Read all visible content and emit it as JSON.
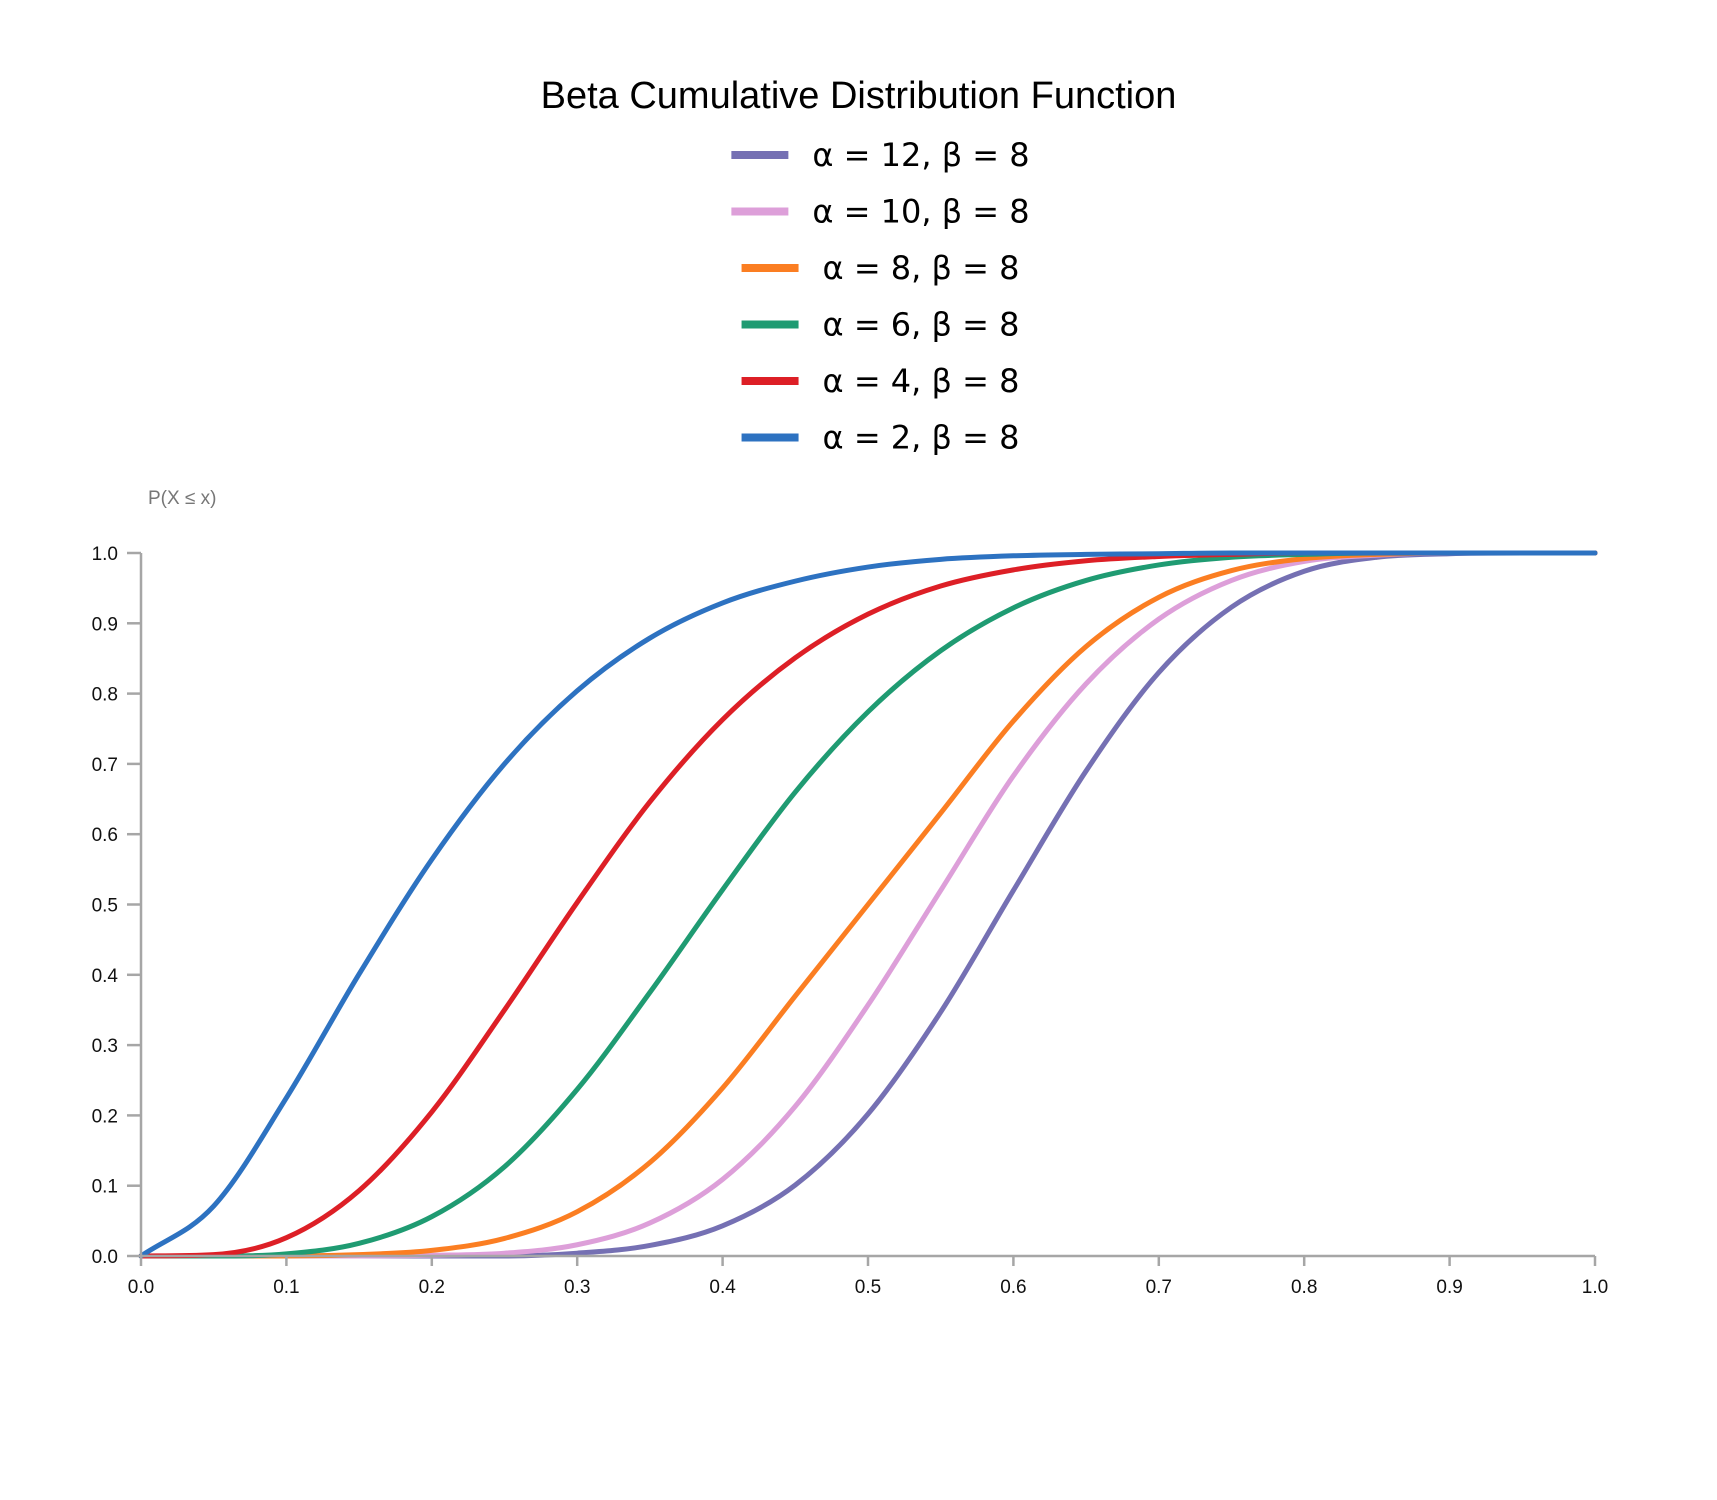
{
  "chart_data": {
    "type": "line",
    "title": "Beta Cumulative Distribution Function",
    "xlabel": "",
    "ylabel": "P(X ≤ x)",
    "xlim": [
      0,
      1
    ],
    "ylim": [
      0,
      1
    ],
    "x_ticks": [
      "0.0",
      "0.1",
      "0.2",
      "0.3",
      "0.4",
      "0.5",
      "0.6",
      "0.7",
      "0.8",
      "0.9",
      "1.0"
    ],
    "y_ticks": [
      "0.0",
      "0.1",
      "0.2",
      "0.3",
      "0.4",
      "0.5",
      "0.6",
      "0.7",
      "0.8",
      "0.9",
      "1.0"
    ],
    "grid": false,
    "legend_position": "top-center",
    "x": [
      0.0,
      0.05,
      0.1,
      0.15,
      0.2,
      0.25,
      0.3,
      0.35,
      0.4,
      0.45,
      0.5,
      0.55,
      0.6,
      0.65,
      0.7,
      0.75,
      0.8,
      0.85,
      0.9,
      0.95,
      1.0
    ],
    "series": [
      {
        "name": "α = 12, β = 8",
        "color": "#7570b3",
        "values": [
          0.0,
          0.0,
          0.0,
          0.0,
          0.0,
          0.0,
          0.004,
          0.015,
          0.043,
          0.101,
          0.202,
          0.347,
          0.52,
          0.69,
          0.83,
          0.923,
          0.974,
          0.994,
          0.999,
          1.0,
          1.0
        ]
      },
      {
        "name": "α = 10, β = 8",
        "color": "#dd9fd9",
        "values": [
          0.0,
          0.0,
          0.0,
          0.0,
          0.001,
          0.004,
          0.016,
          0.047,
          0.109,
          0.213,
          0.357,
          0.52,
          0.683,
          0.814,
          0.906,
          0.961,
          0.988,
          0.997,
          1.0,
          1.0,
          1.0
        ]
      },
      {
        "name": "α = 8, β = 8",
        "color": "#fb7e22",
        "values": [
          0.0,
          0.0,
          0.0,
          0.002,
          0.008,
          0.025,
          0.063,
          0.133,
          0.239,
          0.37,
          0.5,
          0.63,
          0.761,
          0.867,
          0.937,
          0.975,
          0.992,
          0.998,
          1.0,
          1.0,
          1.0
        ]
      },
      {
        "name": "α = 6, β = 8",
        "color": "#1f9b72",
        "values": [
          0.0,
          0.0,
          0.003,
          0.018,
          0.056,
          0.127,
          0.237,
          0.375,
          0.521,
          0.66,
          0.774,
          0.861,
          0.922,
          0.961,
          0.983,
          0.994,
          0.998,
          1.0,
          1.0,
          1.0,
          1.0
        ]
      },
      {
        "name": "α = 4, β = 8",
        "color": "#dd1f26",
        "values": [
          0.0,
          0.002,
          0.026,
          0.093,
          0.205,
          0.35,
          0.503,
          0.646,
          0.763,
          0.851,
          0.913,
          0.953,
          0.976,
          0.989,
          0.995,
          0.998,
          1.0,
          1.0,
          1.0,
          1.0,
          1.0
        ]
      },
      {
        "name": "α = 2, β = 8",
        "color": "#2d72c1",
        "values": [
          0.0,
          0.071,
          0.225,
          0.401,
          0.564,
          0.7,
          0.804,
          0.879,
          0.929,
          0.96,
          0.98,
          0.991,
          0.996,
          0.998,
          0.999,
          1.0,
          1.0,
          1.0,
          1.0,
          1.0,
          1.0
        ]
      }
    ]
  }
}
